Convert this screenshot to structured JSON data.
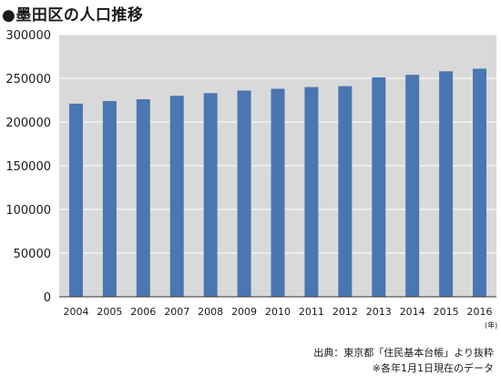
{
  "chart_data": {
    "type": "bar",
    "title": "●墨田区の人口推移",
    "categories": [
      "2004",
      "2005",
      "2006",
      "2007",
      "2008",
      "2009",
      "2010",
      "2011",
      "2012",
      "2013",
      "2014",
      "2015",
      "2016"
    ],
    "values": [
      221000,
      224000,
      226000,
      230000,
      233000,
      236000,
      238000,
      240000,
      241000,
      251000,
      254000,
      258000,
      261000
    ],
    "xlabel": "",
    "ylabel": "",
    "x_unit": "(年)",
    "ylim": [
      0,
      300000
    ],
    "yticks": [
      "0",
      "50000",
      "100000",
      "150000",
      "200000",
      "250000",
      "300000"
    ],
    "grid": true,
    "bar_color": "#4a76b2",
    "plot_background": "#d9d9d9",
    "grid_color": "#ffffff"
  },
  "notes": {
    "source": "出典：東京都「住民基本台帳」より抜粋",
    "date": "※各年1月1日現在のデータ"
  }
}
